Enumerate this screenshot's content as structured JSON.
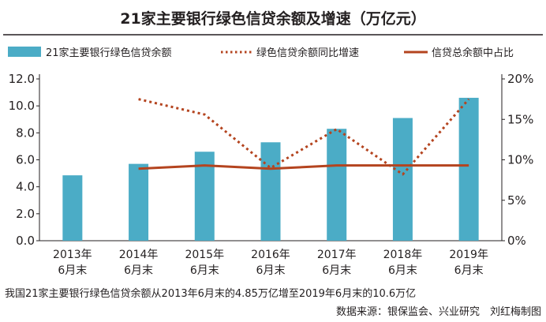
{
  "chart_data": {
    "type": "bar",
    "title": "21家主要银行绿色信贷余额及增速（万亿元）",
    "categories": [
      [
        "2013年",
        "6月末"
      ],
      [
        "2014年",
        "6月末"
      ],
      [
        "2015年",
        "6月末"
      ],
      [
        "2016年",
        "6月末"
      ],
      [
        "2017年",
        "6月末"
      ],
      [
        "2018年",
        "6月末"
      ],
      [
        "2019年",
        "6月末"
      ]
    ],
    "y_left": {
      "min": 0,
      "max": 12,
      "ticks": [
        "0.0",
        "2.0",
        "4.0",
        "6.0",
        "8.0",
        "10.0",
        "12.0"
      ]
    },
    "y_right": {
      "min": 0,
      "max": 20,
      "ticks": [
        "0%",
        "5%",
        "10%",
        "15%",
        "20%"
      ]
    },
    "series": [
      {
        "name": "21家主要银行绿色信贷余额",
        "kind": "bar",
        "axis": "left",
        "color": "#4bacc6",
        "values": [
          4.85,
          5.7,
          6.6,
          7.3,
          8.3,
          9.1,
          10.6
        ]
      },
      {
        "name": "绿色信贷余额同比增速",
        "kind": "line-dotted",
        "axis": "right",
        "color": "#b4441f",
        "values": [
          null,
          17.5,
          15.6,
          9.0,
          13.8,
          8.2,
          17.5
        ]
      },
      {
        "name": "信贷总余额中占比",
        "kind": "line",
        "axis": "right",
        "color": "#b4441f",
        "values": [
          null,
          8.9,
          9.3,
          8.9,
          9.3,
          9.3,
          9.3
        ]
      }
    ],
    "legend_position": "top",
    "grid": false
  },
  "footer": {
    "note": "我国21家主要银行绿色信贷余额从2013年6月末的4.85万亿增至2019年6月末的10.6万亿",
    "source": "数据来源：银保监会、兴业研究　刘红梅制图"
  }
}
